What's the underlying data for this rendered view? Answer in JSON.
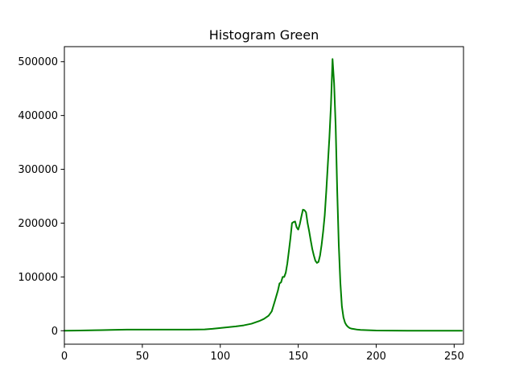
{
  "chart_data": {
    "type": "line",
    "title": "Histogram Green",
    "xlabel": "",
    "ylabel": "",
    "xlim": [
      0,
      256
    ],
    "ylim": [
      -25000,
      528000
    ],
    "grid": false,
    "legend": "none",
    "xticks": [
      0,
      50,
      100,
      150,
      200,
      250
    ],
    "xtick_labels": [
      "0",
      "50",
      "100",
      "150",
      "200",
      "250"
    ],
    "yticks": [
      0,
      100000,
      200000,
      300000,
      400000,
      500000
    ],
    "ytick_labels": [
      "0",
      "100000",
      "200000",
      "300000",
      "400000",
      "500000"
    ],
    "series": [
      {
        "color": "#008000",
        "x": [
          0,
          10,
          20,
          30,
          40,
          50,
          60,
          70,
          80,
          90,
          95,
          100,
          105,
          110,
          115,
          120,
          125,
          128,
          131,
          133,
          135,
          137,
          138,
          139,
          140,
          141,
          142,
          143,
          144,
          145,
          146,
          147,
          148,
          149,
          150,
          151,
          152,
          153,
          154,
          155,
          156,
          157,
          158,
          159,
          160,
          161,
          162,
          163,
          164,
          165,
          166,
          167,
          168,
          169,
          170,
          171,
          172,
          173,
          174,
          175,
          176,
          177,
          178,
          179,
          180,
          181,
          182,
          183,
          184,
          186,
          188,
          190,
          195,
          200,
          210,
          220,
          230,
          240,
          250,
          255
        ],
        "y": [
          0,
          500,
          1000,
          1500,
          2000,
          2000,
          2000,
          2000,
          2000,
          2500,
          3500,
          5000,
          6500,
          8000,
          10000,
          13000,
          18000,
          22000,
          28000,
          36000,
          55000,
          75000,
          88000,
          90000,
          100000,
          100000,
          108000,
          125000,
          148000,
          172000,
          200000,
          202000,
          203000,
          192000,
          188000,
          198000,
          212000,
          225000,
          224000,
          220000,
          200000,
          185000,
          168000,
          152000,
          140000,
          130000,
          126000,
          128000,
          140000,
          160000,
          185000,
          215000,
          260000,
          310000,
          360000,
          420000,
          505000,
          460000,
          380000,
          260000,
          160000,
          90000,
          45000,
          25000,
          15000,
          10000,
          7000,
          5000,
          4000,
          3000,
          2000,
          1500,
          1000,
          500,
          200,
          100,
          100,
          100,
          100,
          100
        ]
      }
    ]
  }
}
